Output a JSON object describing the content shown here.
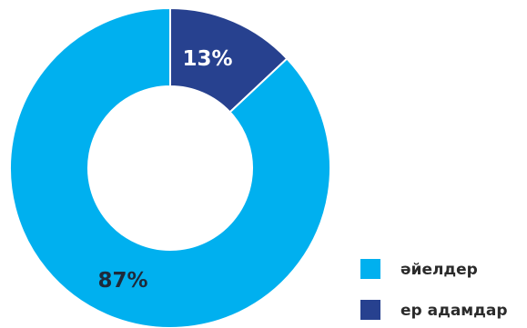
{
  "chart_data": {
    "type": "pie",
    "style": "donut",
    "title": "",
    "slices": [
      {
        "name": "ер адамдар",
        "value": 13,
        "label": "13%",
        "color": "#27418f",
        "label_color": "#ffffff"
      },
      {
        "name": "әйелдер",
        "value": 87,
        "label": "87%",
        "color": "#00b0ef",
        "label_color": "#1e2a3a"
      }
    ],
    "legend": {
      "position": "bottom-right",
      "entries": [
        {
          "label": "әйелдер",
          "color": "#00b0ef"
        },
        {
          "label": "ер адамдар",
          "color": "#27418f"
        }
      ]
    }
  }
}
